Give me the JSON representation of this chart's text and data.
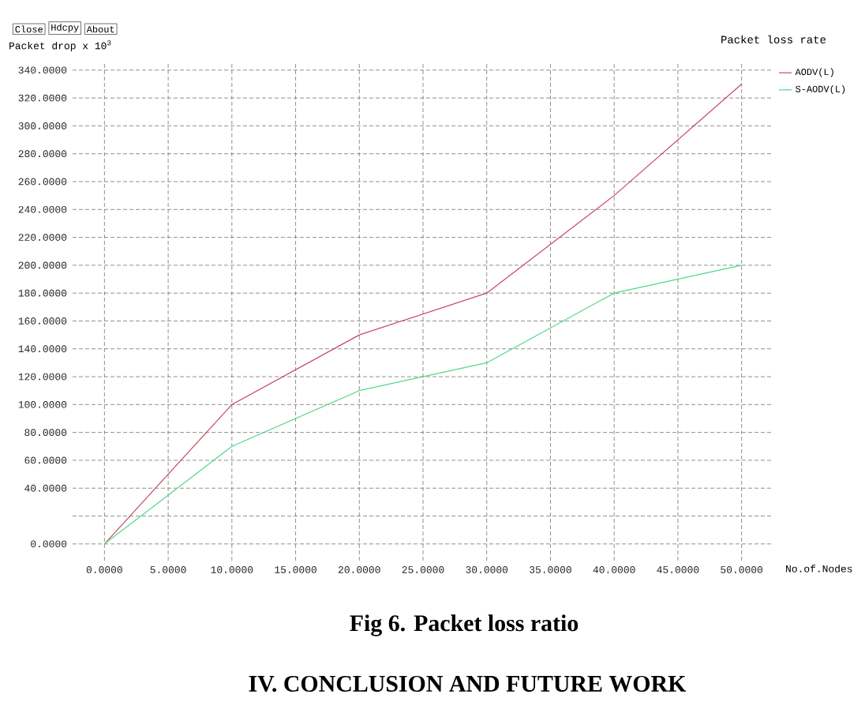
{
  "chart_data": {
    "type": "line",
    "title": "Packet loss rate",
    "xlabel": "No.of.Nodes",
    "ylabel": "Packet drop x 10$^{3}$",
    "x": [
      0,
      10,
      20,
      30,
      40,
      50
    ],
    "series": [
      {
        "name": "AODV(L)",
        "color": "#c84860",
        "values": [
          0,
          100,
          150,
          180,
          250,
          330
        ]
      },
      {
        "name": "S-AODV(L)",
        "color": "#50d888",
        "values": [
          0,
          70,
          110,
          130,
          180,
          200
        ]
      }
    ],
    "xlim": [
      -2.5,
      52.5
    ],
    "ylim": [
      -12,
      345
    ],
    "xticks": [
      {
        "value": 0,
        "label": "0.0000"
      },
      {
        "value": 5,
        "label": "5.0000"
      },
      {
        "value": 10,
        "label": "10.0000"
      },
      {
        "value": 15,
        "label": "15.0000"
      },
      {
        "value": 20,
        "label": "20.0000"
      },
      {
        "value": 25,
        "label": "25.0000"
      },
      {
        "value": 30,
        "label": "30.0000"
      },
      {
        "value": 35,
        "label": "35.0000"
      },
      {
        "value": 40,
        "label": "40.0000"
      },
      {
        "value": 45,
        "label": "45.0000"
      },
      {
        "value": 50,
        "label": "50.0000"
      }
    ],
    "yticks": [
      {
        "value": 0,
        "label": "0.0000"
      },
      {
        "value": 20,
        "label": null
      },
      {
        "value": 40,
        "label": "40.0000"
      },
      {
        "value": 60,
        "label": "60.0000"
      },
      {
        "value": 80,
        "label": "80.0000"
      },
      {
        "value": 100,
        "label": "100.0000"
      },
      {
        "value": 120,
        "label": "120.0000"
      },
      {
        "value": 140,
        "label": "140.0000"
      },
      {
        "value": 160,
        "label": "160.0000"
      },
      {
        "value": 180,
        "label": "180.0000"
      },
      {
        "value": 200,
        "label": "200.0000"
      },
      {
        "value": 220,
        "label": "220.0000"
      },
      {
        "value": 240,
        "label": "240.0000"
      },
      {
        "value": 260,
        "label": "260.0000"
      },
      {
        "value": 280,
        "label": "280.0000"
      },
      {
        "value": 300,
        "label": "300.0000"
      },
      {
        "value": 320,
        "label": "320.0000"
      },
      {
        "value": 340,
        "label": "340.0000"
      }
    ],
    "grid": true,
    "legend": "top right",
    "annotations": [
      "Close",
      "Hdcpy",
      "About",
      "Fig 6. Packet loss ratio",
      "IV. CONCLUSION AND FUTURE WORK"
    ]
  }
}
